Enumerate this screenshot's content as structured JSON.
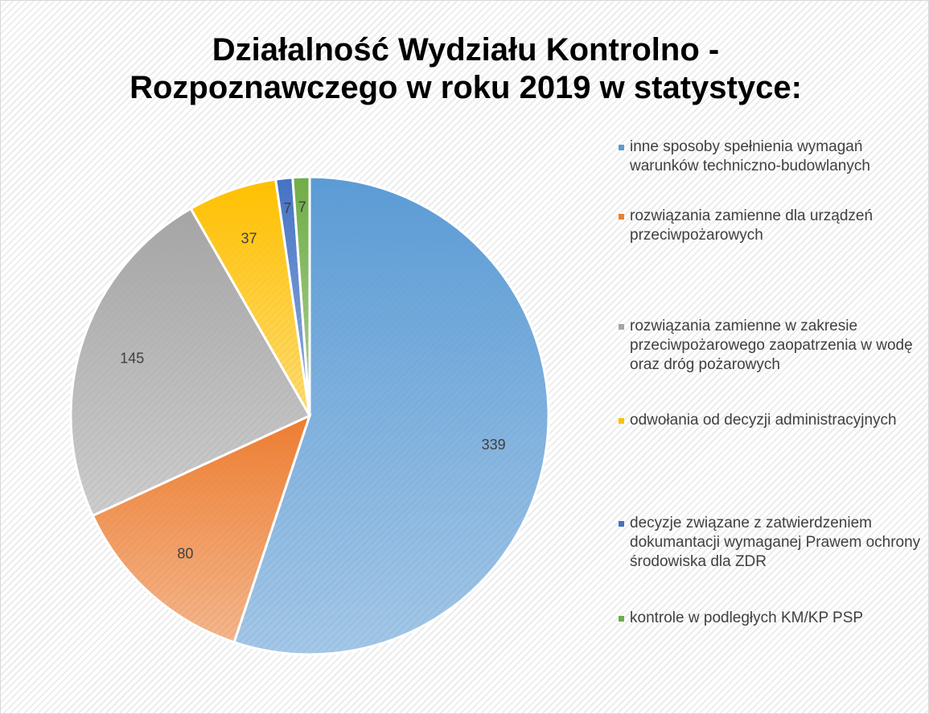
{
  "chart_data": {
    "type": "pie",
    "title": "Działalność Wydziału Kontrolno - Rozpoznawczego w roku 2019 w statystyce:",
    "categories": [
      "inne sposoby spełnienia wymagań warunków techniczno-budowlanych",
      "rozwiązania zamienne dla urządzeń przeciwpożarowych",
      "rozwiązania zamienne w zakresie przeciwpożarowego zaopatrzenia w wodę oraz dróg pożarowych",
      "odwołania od decyzji administracyjnych",
      "decyzje związane z zatwierdzeniem dokumantacji wymaganej Prawem ochrony środowiska dla ZDR",
      "kontrole w podległych KM/KP PSP"
    ],
    "values": [
      339,
      80,
      145,
      37,
      7,
      7
    ],
    "colors": [
      "#5b9bd5",
      "#ed7d31",
      "#a5a5a5",
      "#ffc000",
      "#4472c4",
      "#70ad47"
    ],
    "legend": "right"
  }
}
